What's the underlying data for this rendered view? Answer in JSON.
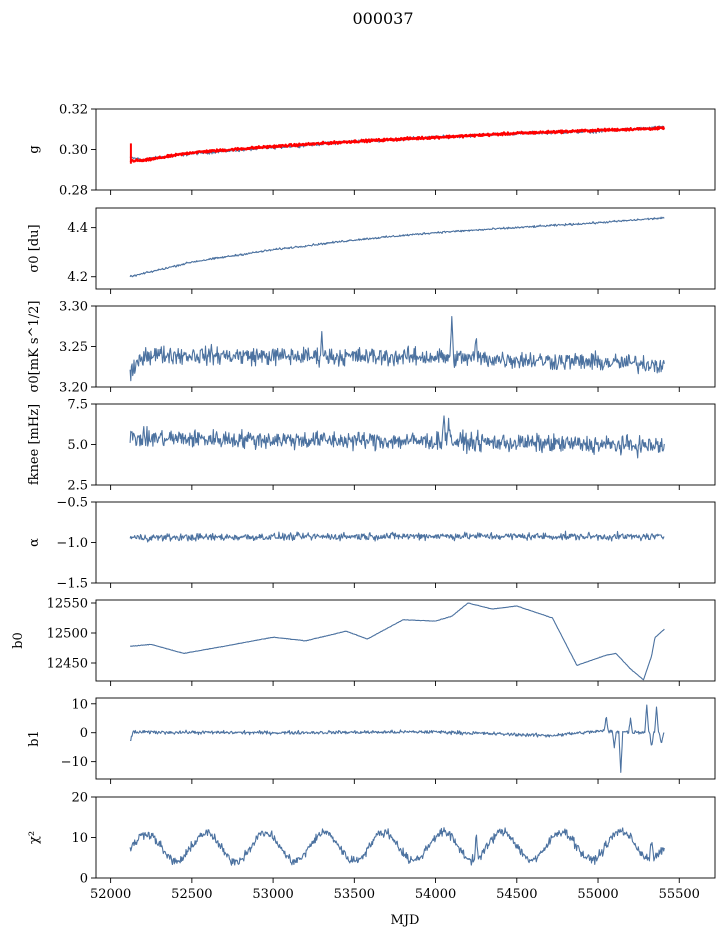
{
  "figure": {
    "title": "000037",
    "xlabel": "MJD",
    "x_ticks": [
      52000,
      52500,
      53000,
      53500,
      54000,
      54500,
      55000,
      55500
    ],
    "xlim": [
      51910,
      55720
    ],
    "data_xrange": [
      52120,
      55410
    ],
    "line_color": "#4c72a0",
    "fit_color": "#ff0000"
  },
  "chart_data": [
    {
      "type": "line",
      "ylabel": "g",
      "ylim": [
        0.28,
        0.32
      ],
      "yticks": [
        "0.28",
        "0.30",
        "0.32"
      ],
      "ytick_values": [
        0.28,
        0.3,
        0.32
      ],
      "series": [
        {
          "values": [
            [
              52120,
              0.296
            ],
            [
              52200,
              0.295
            ],
            [
              52500,
              0.298
            ],
            [
              53000,
              0.301
            ],
            [
              53500,
              0.304
            ],
            [
              54000,
              0.306
            ],
            [
              54500,
              0.308
            ],
            [
              55000,
              0.309
            ],
            [
              55410,
              0.311
            ]
          ],
          "noise": 0.0008
        },
        {
          "role": "fit",
          "values": [
            [
              52120,
              0.2945
            ],
            [
              52200,
              0.2945
            ],
            [
              52500,
              0.2985
            ],
            [
              53000,
              0.3015
            ],
            [
              53500,
              0.304
            ],
            [
              54000,
              0.306
            ],
            [
              54500,
              0.308
            ],
            [
              55000,
              0.3095
            ],
            [
              55410,
              0.3105
            ]
          ],
          "noise": 0.0006
        }
      ]
    },
    {
      "type": "line",
      "ylabel": "σ0 [du]",
      "ylim": [
        4.15,
        4.48
      ],
      "yticks": [
        "4.2",
        "4.4"
      ],
      "ytick_values": [
        4.2,
        4.4
      ],
      "series": [
        {
          "values": [
            [
              52120,
              4.2
            ],
            [
              52500,
              4.26
            ],
            [
              53000,
              4.31
            ],
            [
              53500,
              4.35
            ],
            [
              54000,
              4.38
            ],
            [
              54500,
              4.4
            ],
            [
              55000,
              4.42
            ],
            [
              55410,
              4.44
            ]
          ],
          "noise": 0.004
        }
      ]
    },
    {
      "type": "line",
      "ylabel": "σ0[mK s^1/2]",
      "ylim": [
        3.2,
        3.3
      ],
      "yticks": [
        "3.20",
        "3.25",
        "3.30"
      ],
      "ytick_values": [
        3.2,
        3.25,
        3.3
      ],
      "series": [
        {
          "values": [
            [
              52120,
              3.213
            ],
            [
              52200,
              3.24
            ],
            [
              53000,
              3.238
            ],
            [
              54000,
              3.237
            ],
            [
              55410,
              3.228
            ]
          ],
          "noise": 0.011,
          "spikes": [
            [
              54100,
              3.278
            ],
            [
              53300,
              3.265
            ],
            [
              54250,
              3.258
            ]
          ]
        }
      ]
    },
    {
      "type": "line",
      "ylabel": "fknee [mHz]",
      "ylim": [
        2.5,
        7.5
      ],
      "yticks": [
        "2.5",
        "5.0",
        "7.5"
      ],
      "ytick_values": [
        2.5,
        5.0,
        7.5
      ],
      "series": [
        {
          "values": [
            [
              52120,
              5.4
            ],
            [
              53000,
              5.3
            ],
            [
              54000,
              5.2
            ],
            [
              55410,
              4.9
            ]
          ],
          "noise": 0.55,
          "spikes": [
            [
              54050,
              6.8
            ],
            [
              54080,
              6.7
            ]
          ]
        }
      ]
    },
    {
      "type": "line",
      "ylabel": "α",
      "ylim": [
        -1.5,
        -0.5
      ],
      "yticks": [
        "−1.5",
        "−1.0",
        "−0.5"
      ],
      "ytick_values": [
        -1.5,
        -1.0,
        -0.5
      ],
      "series": [
        {
          "values": [
            [
              52120,
              -0.94
            ],
            [
              53000,
              -0.93
            ],
            [
              54000,
              -0.92
            ],
            [
              55410,
              -0.93
            ]
          ],
          "noise": 0.045
        }
      ]
    },
    {
      "type": "line",
      "ylabel": "b0",
      "ylim": [
        12420,
        12555
      ],
      "yticks": [
        "12450",
        "12500",
        "12550"
      ],
      "ytick_values": [
        12450,
        12500,
        12550
      ],
      "series": [
        {
          "values": [
            [
              52120,
              12478
            ],
            [
              52250,
              12481
            ],
            [
              52450,
              12466
            ],
            [
              52700,
              12478
            ],
            [
              53000,
              12493
            ],
            [
              53200,
              12487
            ],
            [
              53450,
              12503
            ],
            [
              53580,
              12490
            ],
            [
              53800,
              12522
            ],
            [
              54000,
              12520
            ],
            [
              54100,
              12528
            ],
            [
              54200,
              12550
            ],
            [
              54350,
              12540
            ],
            [
              54500,
              12545
            ],
            [
              54720,
              12525
            ],
            [
              54870,
              12446
            ],
            [
              55050,
              12463
            ],
            [
              55110,
              12466
            ],
            [
              55200,
              12440
            ],
            [
              55280,
              12422
            ],
            [
              55330,
              12462
            ],
            [
              55350,
              12492
            ],
            [
              55410,
              12507
            ]
          ],
          "noise": 0.4
        }
      ]
    },
    {
      "type": "line",
      "ylabel": "b1",
      "ylim": [
        -16,
        12
      ],
      "yticks": [
        "−10",
        "0",
        "10"
      ],
      "ytick_values": [
        -10,
        0,
        10
      ],
      "series": [
        {
          "values": [
            [
              52120,
              -3.0
            ],
            [
              52140,
              0.2
            ],
            [
              53000,
              0.0
            ],
            [
              54000,
              0.3
            ],
            [
              54700,
              -1.0
            ],
            [
              55000,
              0.5
            ],
            [
              55410,
              0.0
            ]
          ],
          "noise": 0.6,
          "spikes": [
            [
              55050,
              6.0
            ],
            [
              55100,
              -5.0
            ],
            [
              55140,
              -13.5
            ],
            [
              55200,
              4.5
            ],
            [
              55300,
              10.0
            ],
            [
              55330,
              -5.0
            ],
            [
              55360,
              9.0
            ],
            [
              55390,
              -4.0
            ]
          ]
        }
      ]
    },
    {
      "type": "line",
      "ylabel": "χ²",
      "ylim": [
        0,
        20
      ],
      "yticks": [
        "0",
        "10",
        "20"
      ],
      "ytick_values": [
        0,
        10,
        20
      ],
      "series": [
        {
          "values": [
            [
              52120,
              7.5
            ],
            [
              55410,
              9.5
            ]
          ],
          "seasonal": {
            "mean": 7.5,
            "amplitude": 3.5,
            "period": 365
          },
          "noise": 1.1,
          "spikes": [
            [
              54250,
              15.0
            ],
            [
              55330,
              15.0
            ]
          ]
        }
      ]
    }
  ]
}
